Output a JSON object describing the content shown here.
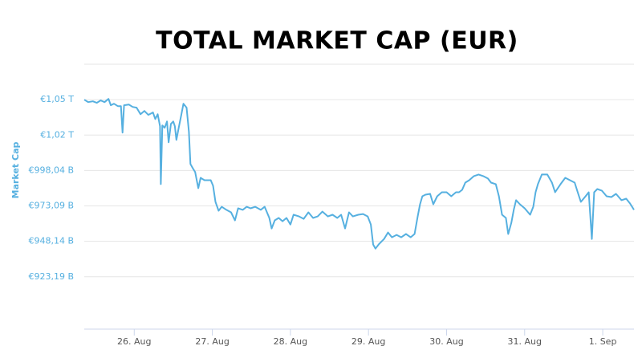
{
  "chart_data": {
    "type": "line",
    "title": "TOTAL MARKET CAP (EUR)",
    "y_label": "Market Cap",
    "color": "#56b0e0",
    "grid": true,
    "xlim": [
      25.36,
      32.4
    ],
    "xticks": [
      {
        "value": 26,
        "label": "26. Aug"
      },
      {
        "value": 27,
        "label": "27. Aug"
      },
      {
        "value": 28,
        "label": "28. Aug"
      },
      {
        "value": 29,
        "label": "29. Aug"
      },
      {
        "value": 30,
        "label": "30. Aug"
      },
      {
        "value": 31,
        "label": "31. Aug"
      },
      {
        "value": 32,
        "label": "1. Sep"
      }
    ],
    "ylim": [
      886.3,
      1072.9
    ],
    "yticks": [
      {
        "value": 923.19,
        "label": "€923,19 B"
      },
      {
        "value": 948.14,
        "label": "€948,14 B"
      },
      {
        "value": 973.09,
        "label": "€973,09 B"
      },
      {
        "value": 998.04,
        "label": "€998,04 B"
      },
      {
        "value": 1022.99,
        "label": "€1,02 T"
      },
      {
        "value": 1047.94,
        "label": "€1,05 T"
      }
    ],
    "x": [
      25.36,
      25.41,
      25.47,
      25.52,
      25.57,
      25.62,
      25.67,
      25.7,
      25.74,
      25.79,
      25.83,
      25.85,
      25.87,
      25.93,
      25.98,
      26.03,
      26.08,
      26.13,
      26.18,
      26.24,
      26.27,
      26.3,
      26.33,
      26.34,
      26.36,
      26.39,
      26.42,
      26.44,
      26.47,
      26.5,
      26.52,
      26.54,
      26.57,
      26.6,
      26.63,
      26.67,
      26.7,
      26.72,
      26.75,
      26.78,
      26.82,
      26.85,
      26.9,
      26.98,
      27.01,
      27.04,
      27.08,
      27.12,
      27.18,
      27.24,
      27.29,
      27.33,
      27.39,
      27.44,
      27.49,
      27.55,
      27.62,
      27.67,
      27.73,
      27.76,
      27.8,
      27.85,
      27.9,
      27.95,
      28.0,
      28.04,
      28.11,
      28.17,
      28.23,
      28.29,
      28.35,
      28.41,
      28.48,
      28.54,
      28.6,
      28.65,
      28.7,
      28.75,
      28.8,
      28.87,
      28.93,
      28.99,
      29.03,
      29.06,
      29.09,
      29.13,
      29.2,
      29.25,
      29.3,
      29.36,
      29.42,
      29.48,
      29.54,
      29.59,
      29.63,
      29.66,
      29.69,
      29.73,
      29.79,
      29.83,
      29.88,
      29.94,
      30.0,
      30.06,
      30.12,
      30.16,
      30.2,
      30.24,
      30.29,
      30.35,
      30.41,
      30.47,
      30.53,
      30.57,
      30.63,
      30.67,
      30.71,
      30.76,
      30.79,
      30.83,
      30.86,
      30.89,
      30.94,
      31.0,
      31.07,
      31.11,
      31.14,
      31.17,
      31.22,
      31.29,
      31.35,
      31.39,
      31.46,
      31.52,
      31.58,
      31.64,
      31.68,
      31.72,
      31.78,
      31.82,
      31.86,
      31.89,
      31.93,
      31.99,
      32.05,
      32.11,
      32.17,
      32.24,
      32.3,
      32.35,
      32.4
    ],
    "values": [
      1047.9,
      1046.2,
      1046.8,
      1045.7,
      1047.4,
      1046.2,
      1048.5,
      1044.0,
      1045.1,
      1043.4,
      1043.4,
      1024.7,
      1044.0,
      1044.5,
      1042.8,
      1042.3,
      1037.7,
      1040.0,
      1037.2,
      1038.9,
      1034.3,
      1037.7,
      1029.2,
      988.4,
      1029.8,
      1028.1,
      1032.6,
      1017.9,
      1030.9,
      1032.6,
      1029.2,
      1019.6,
      1028.1,
      1036.6,
      1045.1,
      1042.3,
      1025.3,
      1002.6,
      999.7,
      996.9,
      985.6,
      992.9,
      991.2,
      991.2,
      987.3,
      975.9,
      969.7,
      972.5,
      970.3,
      968.6,
      962.9,
      971.4,
      970.3,
      972.5,
      971.4,
      972.5,
      970.3,
      972.5,
      964.6,
      957.2,
      962.9,
      964.6,
      962.3,
      964.6,
      960.0,
      966.9,
      965.7,
      964.0,
      968.6,
      964.6,
      965.7,
      969.1,
      965.7,
      966.9,
      964.6,
      966.9,
      957.2,
      968.6,
      965.7,
      966.9,
      967.4,
      965.7,
      960.0,
      945.9,
      943.0,
      945.9,
      949.8,
      954.4,
      951.0,
      952.7,
      951.0,
      953.3,
      951.0,
      953.3,
      965.7,
      974.2,
      979.9,
      981.0,
      981.6,
      974.2,
      979.9,
      982.7,
      982.7,
      979.9,
      982.7,
      982.7,
      984.4,
      989.5,
      991.2,
      994.1,
      995.2,
      994.1,
      992.4,
      989.5,
      988.4,
      979.9,
      966.9,
      964.6,
      953.3,
      961.2,
      970.3,
      977.1,
      974.2,
      971.4,
      966.9,
      972.5,
      982.7,
      988.4,
      995.2,
      995.2,
      989.5,
      982.7,
      988.4,
      992.9,
      991.2,
      989.5,
      982.7,
      975.9,
      979.9,
      982.7,
      949.8,
      982.7,
      985.0,
      983.8,
      979.9,
      979.3,
      981.6,
      977.1,
      978.2,
      974.8,
      970.3
    ]
  }
}
